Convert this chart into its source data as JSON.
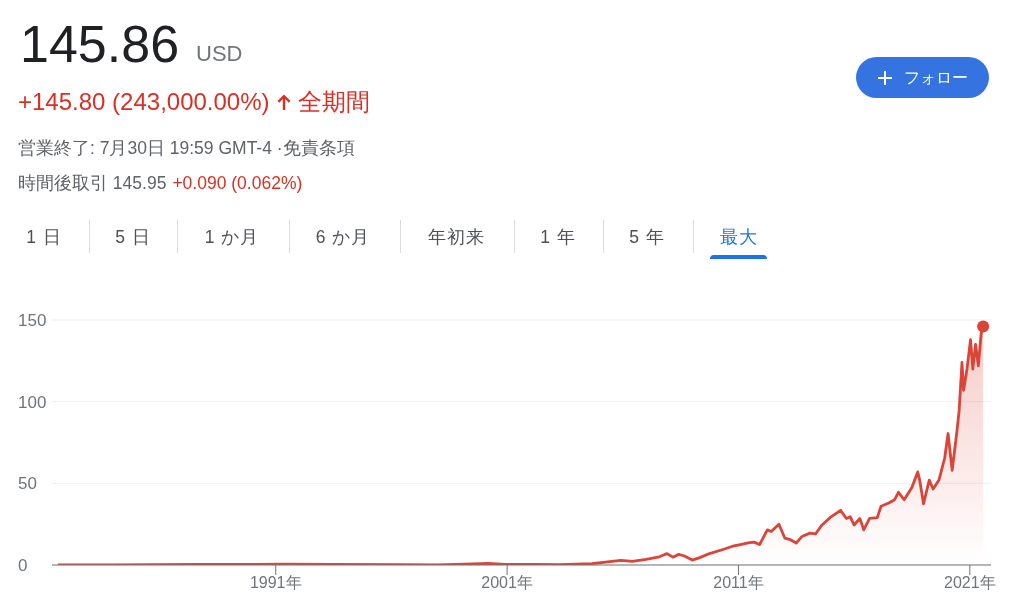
{
  "chart_data": {
    "type": "area",
    "title": "145.86",
    "annotations": [
      "USD",
      "+145.80 (243,000.00%)",
      "全期間",
      "営業終了: 7月30日 19:59 GMT-4 ·免責条項",
      "時間後取引 145.95",
      "+0.090 (0.062%)",
      "フォロー",
      "1 日",
      "5 日",
      "1 か月",
      "6 か月",
      "年初来",
      "1 年",
      "5 年",
      "最大"
    ],
    "x": [
      "1981-08",
      "1984-01",
      "1987-09",
      "1989-06",
      "1991-06",
      "1993-06",
      "1996-06",
      "1998-01",
      "1999-12",
      "2000-03",
      "2000-12",
      "2002-03",
      "2003-04",
      "2004-09",
      "2005-12",
      "2006-06",
      "2007-01",
      "2007-08",
      "2007-12",
      "2008-03",
      "2008-06",
      "2008-09",
      "2009-01",
      "2009-05",
      "2009-10",
      "2010-05",
      "2010-10",
      "2011-02",
      "2011-06",
      "2011-09",
      "2011-12",
      "2012-04",
      "2012-06",
      "2012-10",
      "2013-01",
      "2013-04",
      "2013-07",
      "2013-10",
      "2014-02",
      "2014-05",
      "2014-08",
      "2015-01",
      "2015-06",
      "2015-09",
      "2015-11",
      "2016-01",
      "2016-04",
      "2016-06",
      "2016-09",
      "2017-01",
      "2017-03",
      "2017-07",
      "2017-10",
      "2017-12",
      "2018-03",
      "2018-07",
      "2018-10",
      "2018-11",
      "2019-01",
      "2019-04",
      "2019-06",
      "2019-09",
      "2019-12",
      "2020-01-23",
      "2020-03-28",
      "2020-06-10",
      "2020-07-16",
      "2020-08-30",
      "2020-09-24",
      "2020-11-17",
      "2021-01-12",
      "2021-02-17",
      "2021-04-01",
      "2021-05-15",
      "2021-06-28",
      "2021-07-30"
    ],
    "series": [
      {
        "color": "#db4437",
        "values": [
          0.1,
          0.1,
          0.4,
          0.3,
          0.5,
          0.4,
          0.2,
          0.1,
          0.9,
          1.0,
          0.3,
          0.4,
          0.2,
          0.8,
          2.8,
          2.2,
          3.5,
          5.0,
          7.0,
          4.8,
          6.5,
          5.5,
          3.0,
          4.5,
          7.0,
          9.5,
          11.5,
          12.5,
          13.5,
          14.0,
          12.5,
          21.5,
          20.5,
          25.0,
          16.5,
          15.5,
          13.5,
          17.5,
          19.5,
          19.0,
          24.0,
          29.5,
          33.5,
          28.5,
          29.5,
          24.5,
          28.5,
          21.5,
          28.5,
          29.0,
          36.0,
          38.0,
          40.0,
          44.5,
          40.0,
          47.5,
          57.0,
          52.0,
          37.5,
          52.0,
          46.5,
          52.0,
          65.5,
          80.5,
          58.0,
          81.5,
          94.5,
          124.0,
          107.0,
          120.0,
          138.0,
          120.0,
          135.0,
          122.0,
          141.5,
          146.0
        ]
      },
      {
        "type": "scatter",
        "x": [
          "2021-07-30"
        ],
        "values": [
          146.0
        ],
        "color": "#db4437",
        "marker": "circle"
      }
    ],
    "xlim": [
      "1981-05",
      "2021-12"
    ],
    "xticks": [
      {
        "value": "1991",
        "label": "1991年"
      },
      {
        "value": "2001",
        "label": "2001年"
      },
      {
        "value": "2011",
        "label": "2011年"
      },
      {
        "value": "2021",
        "label": "2021年"
      }
    ],
    "ylim": [
      0,
      150
    ],
    "yticks": [
      0,
      50,
      100,
      150
    ],
    "grid": "y"
  }
}
